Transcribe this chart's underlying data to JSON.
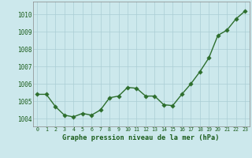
{
  "x": [
    0,
    1,
    2,
    3,
    4,
    5,
    6,
    7,
    8,
    9,
    10,
    11,
    12,
    13,
    14,
    15,
    16,
    17,
    18,
    19,
    20,
    21,
    22,
    23
  ],
  "y": [
    1005.4,
    1005.4,
    1004.7,
    1004.2,
    1004.1,
    1004.3,
    1004.2,
    1004.5,
    1005.2,
    1005.3,
    1005.8,
    1005.75,
    1005.3,
    1005.3,
    1004.8,
    1004.75,
    1005.4,
    1006.0,
    1006.7,
    1007.5,
    1008.8,
    1009.1,
    1009.75,
    1010.2
  ],
  "line_color": "#2d6e2d",
  "marker_color": "#2d6e2d",
  "bg_color": "#cce8ec",
  "grid_color": "#aacdd4",
  "xlabel": "Graphe pression niveau de la mer (hPa)",
  "xlabel_color": "#1a5c1a",
  "ylabel_ticks": [
    1004,
    1005,
    1006,
    1007,
    1008,
    1009,
    1010
  ],
  "xlim": [
    -0.5,
    23.5
  ],
  "ylim": [
    1003.55,
    1010.75
  ],
  "tick_label_color": "#1a5c1a",
  "line_width": 1.0,
  "marker_size": 2.8,
  "xtick_fontsize": 4.8,
  "ytick_fontsize": 5.5,
  "xlabel_fontsize": 6.2
}
